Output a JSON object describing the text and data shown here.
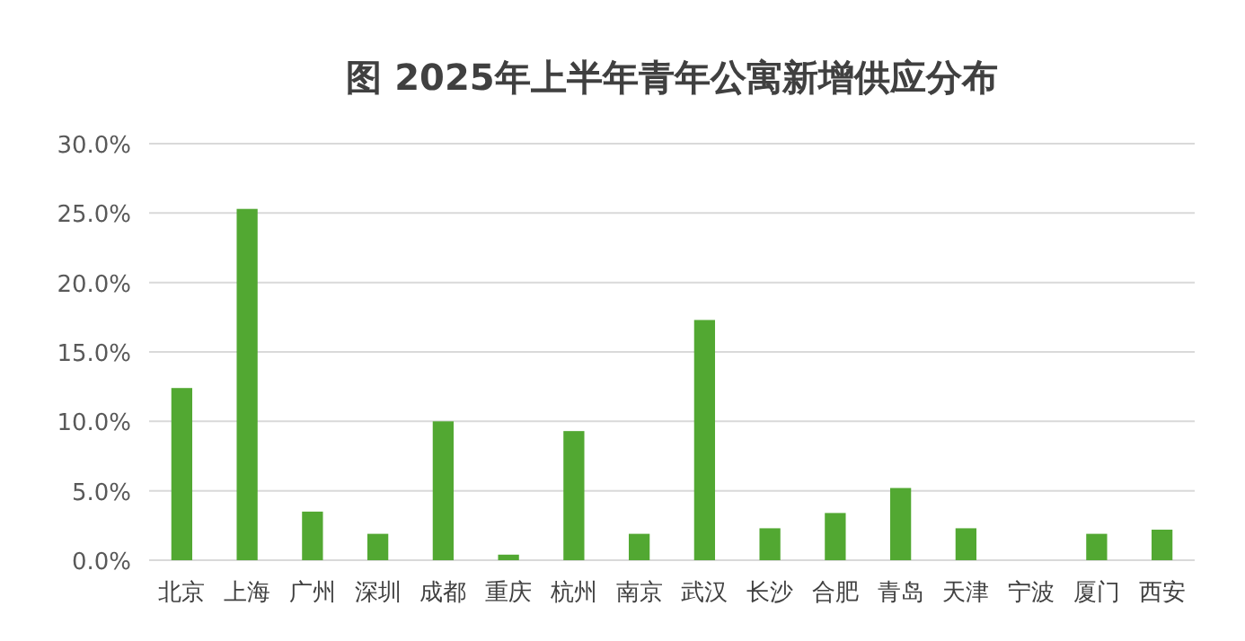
{
  "chart_data": {
    "type": "bar",
    "title": "图 2025年上半年青年公寓新增供应分布",
    "categories": [
      "北京",
      "上海",
      "广州",
      "深圳",
      "成都",
      "重庆",
      "杭州",
      "南京",
      "武汉",
      "长沙",
      "合肥",
      "青岛",
      "天津",
      "宁波",
      "厦门",
      "西安"
    ],
    "values": [
      12.4,
      25.3,
      3.5,
      1.9,
      10.0,
      0.4,
      9.3,
      1.9,
      17.3,
      2.3,
      3.4,
      5.2,
      2.3,
      0,
      1.9,
      2.2
    ],
    "color": "#52a832",
    "ylim": [
      0,
      30
    ],
    "yticks": [
      {
        "value": 0,
        "label": "0.0%"
      },
      {
        "value": 5,
        "label": "5.0%"
      },
      {
        "value": 10,
        "label": "10.0%"
      },
      {
        "value": 15,
        "label": "15.0%"
      },
      {
        "value": 20,
        "label": "20.0%"
      },
      {
        "value": 25,
        "label": "25.0%"
      },
      {
        "value": 30,
        "label": "30.0%"
      }
    ],
    "grid": "y"
  }
}
